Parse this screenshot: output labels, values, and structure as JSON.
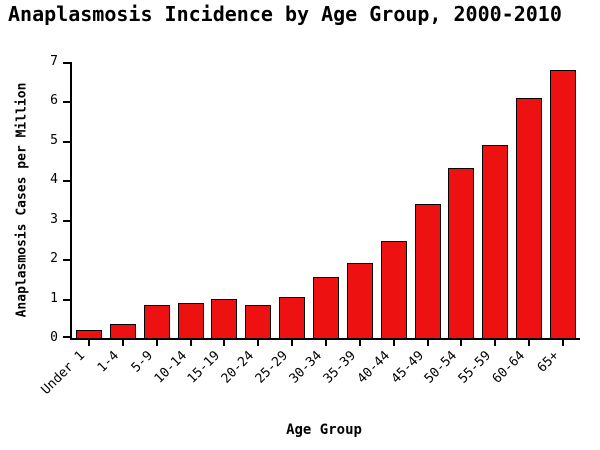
{
  "chart_data": {
    "type": "bar",
    "title": "Anaplasmosis Incidence by Age Group, 2000-2010",
    "xlabel": "Age Group",
    "ylabel": "Anaplasmosis Cases per Million",
    "categories": [
      "Under 1",
      "1-4",
      "5-9",
      "10-14",
      "15-19",
      "20-24",
      "25-29",
      "30-34",
      "35-39",
      "40-44",
      "45-49",
      "50-54",
      "55-59",
      "60-64",
      "65+"
    ],
    "values": [
      0.2,
      0.35,
      0.85,
      0.9,
      1.0,
      0.85,
      1.05,
      1.55,
      1.9,
      2.45,
      3.4,
      4.3,
      4.9,
      6.1,
      6.8
    ],
    "ylim": [
      0,
      7
    ],
    "yticks": [
      0,
      1,
      2,
      3,
      4,
      5,
      6,
      7
    ],
    "grid": "off",
    "legend": "none",
    "bar_color": "#ee1111",
    "bar_border_color": "#000000",
    "axis_color": "#000000",
    "background_color": "#ffffff"
  }
}
